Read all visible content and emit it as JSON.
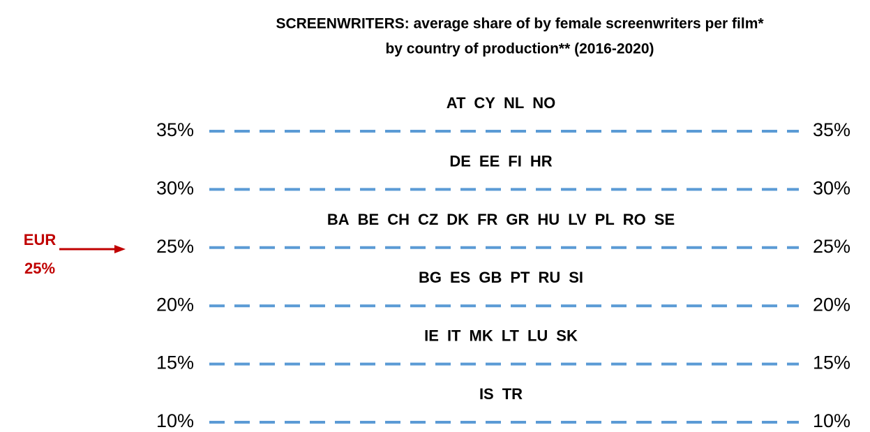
{
  "title": [
    "SCREENWRITERS: average share of by female screenwriters per film*",
    "by country of production** (2016-2020)"
  ],
  "levels": [
    "35%",
    "30%",
    "25%",
    "20%",
    "15%",
    "10%"
  ],
  "groups": [
    [
      "AT",
      "CY",
      "NL",
      "NO"
    ],
    [
      "DE",
      "EE",
      "FI",
      "HR"
    ],
    [
      "BA",
      "BE",
      "CH",
      "CZ",
      "DK",
      "FR",
      "GR",
      "HU",
      "LV",
      "PL",
      "RO",
      "SE"
    ],
    [
      "BG",
      "ES",
      "GB",
      "PT",
      "RU",
      "SI"
    ],
    [
      "IE",
      "IT",
      "MK",
      "LT",
      "LU",
      "SK"
    ],
    [
      "IS",
      "TR"
    ]
  ],
  "marker": {
    "label": "EUR",
    "value": "25%"
  }
}
